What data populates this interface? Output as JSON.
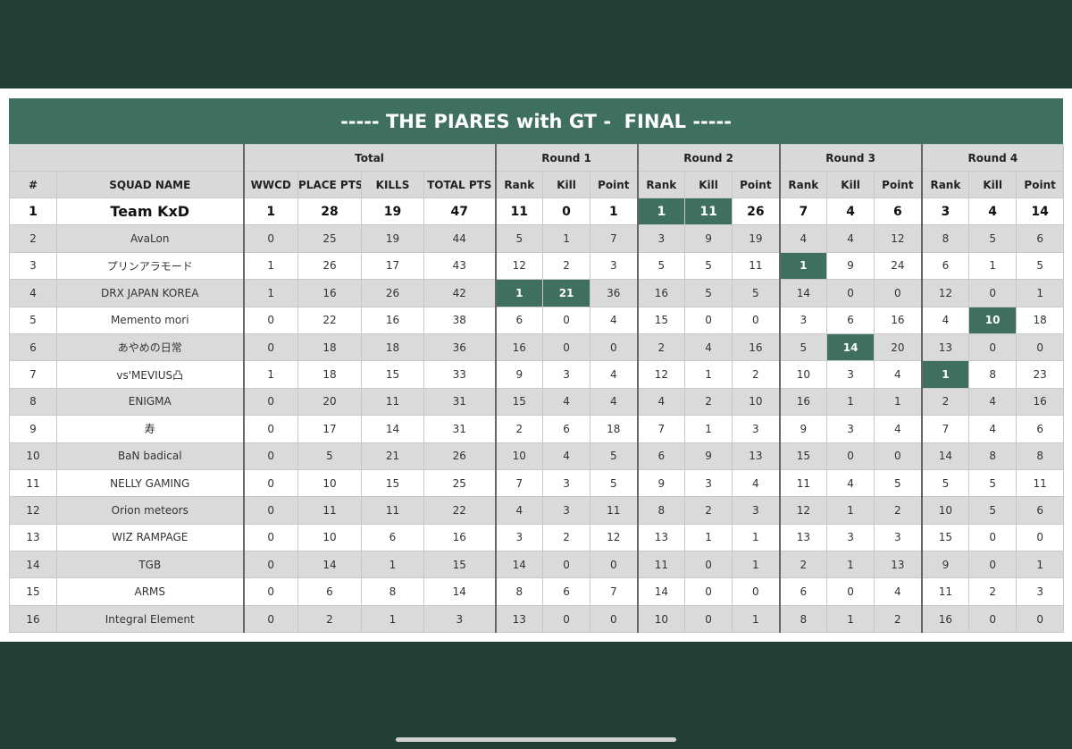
{
  "title": "----- THE PIARES with GT -  FINAL -----",
  "table": {
    "groups": [
      {
        "label": "Total",
        "span": 4
      },
      {
        "label": "Round 1",
        "span": 3
      },
      {
        "label": "Round 2",
        "span": 3
      },
      {
        "label": "Round 3",
        "span": 3
      },
      {
        "label": "Round 4",
        "span": 3
      }
    ],
    "columns": [
      "#",
      "SQUAD NAME",
      "WWCD",
      "PLACE PTS",
      "KILLS",
      "TOTAL PTS",
      "Rank",
      "Kill",
      "Point",
      "Rank",
      "Kill",
      "Point",
      "Rank",
      "Kill",
      "Point",
      "Rank",
      "Kill",
      "Point"
    ],
    "rows": [
      [
        1,
        "Team KxD",
        1,
        28,
        19,
        47,
        11,
        0,
        1,
        1,
        11,
        26,
        7,
        4,
        6,
        3,
        4,
        14
      ],
      [
        2,
        "AvaLon",
        0,
        25,
        19,
        44,
        5,
        1,
        7,
        3,
        9,
        19,
        4,
        4,
        12,
        8,
        5,
        6
      ],
      [
        3,
        "プリンアラモード",
        1,
        26,
        17,
        43,
        12,
        2,
        3,
        5,
        5,
        11,
        1,
        9,
        24,
        6,
        1,
        5
      ],
      [
        4,
        "DRX JAPAN KOREA",
        1,
        16,
        26,
        42,
        1,
        21,
        36,
        16,
        5,
        5,
        14,
        0,
        0,
        12,
        0,
        1
      ],
      [
        5,
        "Memento mori",
        0,
        22,
        16,
        38,
        6,
        0,
        4,
        15,
        0,
        0,
        3,
        6,
        16,
        4,
        10,
        18
      ],
      [
        6,
        "あやめの日常",
        0,
        18,
        18,
        36,
        16,
        0,
        0,
        2,
        4,
        16,
        5,
        14,
        20,
        13,
        0,
        0
      ],
      [
        7,
        "vs'MEVIUS凸",
        1,
        18,
        15,
        33,
        9,
        3,
        4,
        12,
        1,
        2,
        10,
        3,
        4,
        1,
        8,
        23
      ],
      [
        8,
        "ENIGMA",
        0,
        20,
        11,
        31,
        15,
        4,
        4,
        4,
        2,
        10,
        16,
        1,
        1,
        2,
        4,
        16
      ],
      [
        9,
        "寿",
        0,
        17,
        14,
        31,
        2,
        6,
        18,
        7,
        1,
        3,
        9,
        3,
        4,
        7,
        4,
        6
      ],
      [
        10,
        "BaN badical",
        0,
        5,
        21,
        26,
        10,
        4,
        5,
        6,
        9,
        13,
        15,
        0,
        0,
        14,
        8,
        8
      ],
      [
        11,
        "NELLY GAMING",
        0,
        10,
        15,
        25,
        7,
        3,
        5,
        9,
        3,
        4,
        11,
        4,
        5,
        5,
        5,
        11
      ],
      [
        12,
        "Orion meteors",
        0,
        11,
        11,
        22,
        4,
        3,
        11,
        8,
        2,
        3,
        12,
        1,
        2,
        10,
        5,
        6
      ],
      [
        13,
        "WIZ RAMPAGE",
        0,
        10,
        6,
        16,
        3,
        2,
        12,
        13,
        1,
        1,
        13,
        3,
        3,
        15,
        0,
        0
      ],
      [
        14,
        "TGB",
        0,
        14,
        1,
        15,
        14,
        0,
        0,
        11,
        0,
        1,
        2,
        1,
        13,
        9,
        0,
        1
      ],
      [
        15,
        "ARMS",
        0,
        6,
        8,
        14,
        8,
        6,
        7,
        14,
        0,
        0,
        6,
        0,
        4,
        11,
        2,
        3
      ],
      [
        16,
        "Integral Element",
        0,
        2,
        1,
        3,
        13,
        0,
        0,
        10,
        0,
        1,
        8,
        1,
        2,
        16,
        0,
        0
      ]
    ],
    "highlight": {
      "color": "#3e6f5f",
      "cells": [
        [
          0,
          9
        ],
        [
          0,
          10
        ],
        [
          2,
          12
        ],
        [
          3,
          6
        ],
        [
          3,
          7
        ],
        [
          4,
          16
        ],
        [
          5,
          13
        ],
        [
          6,
          15
        ]
      ]
    }
  }
}
